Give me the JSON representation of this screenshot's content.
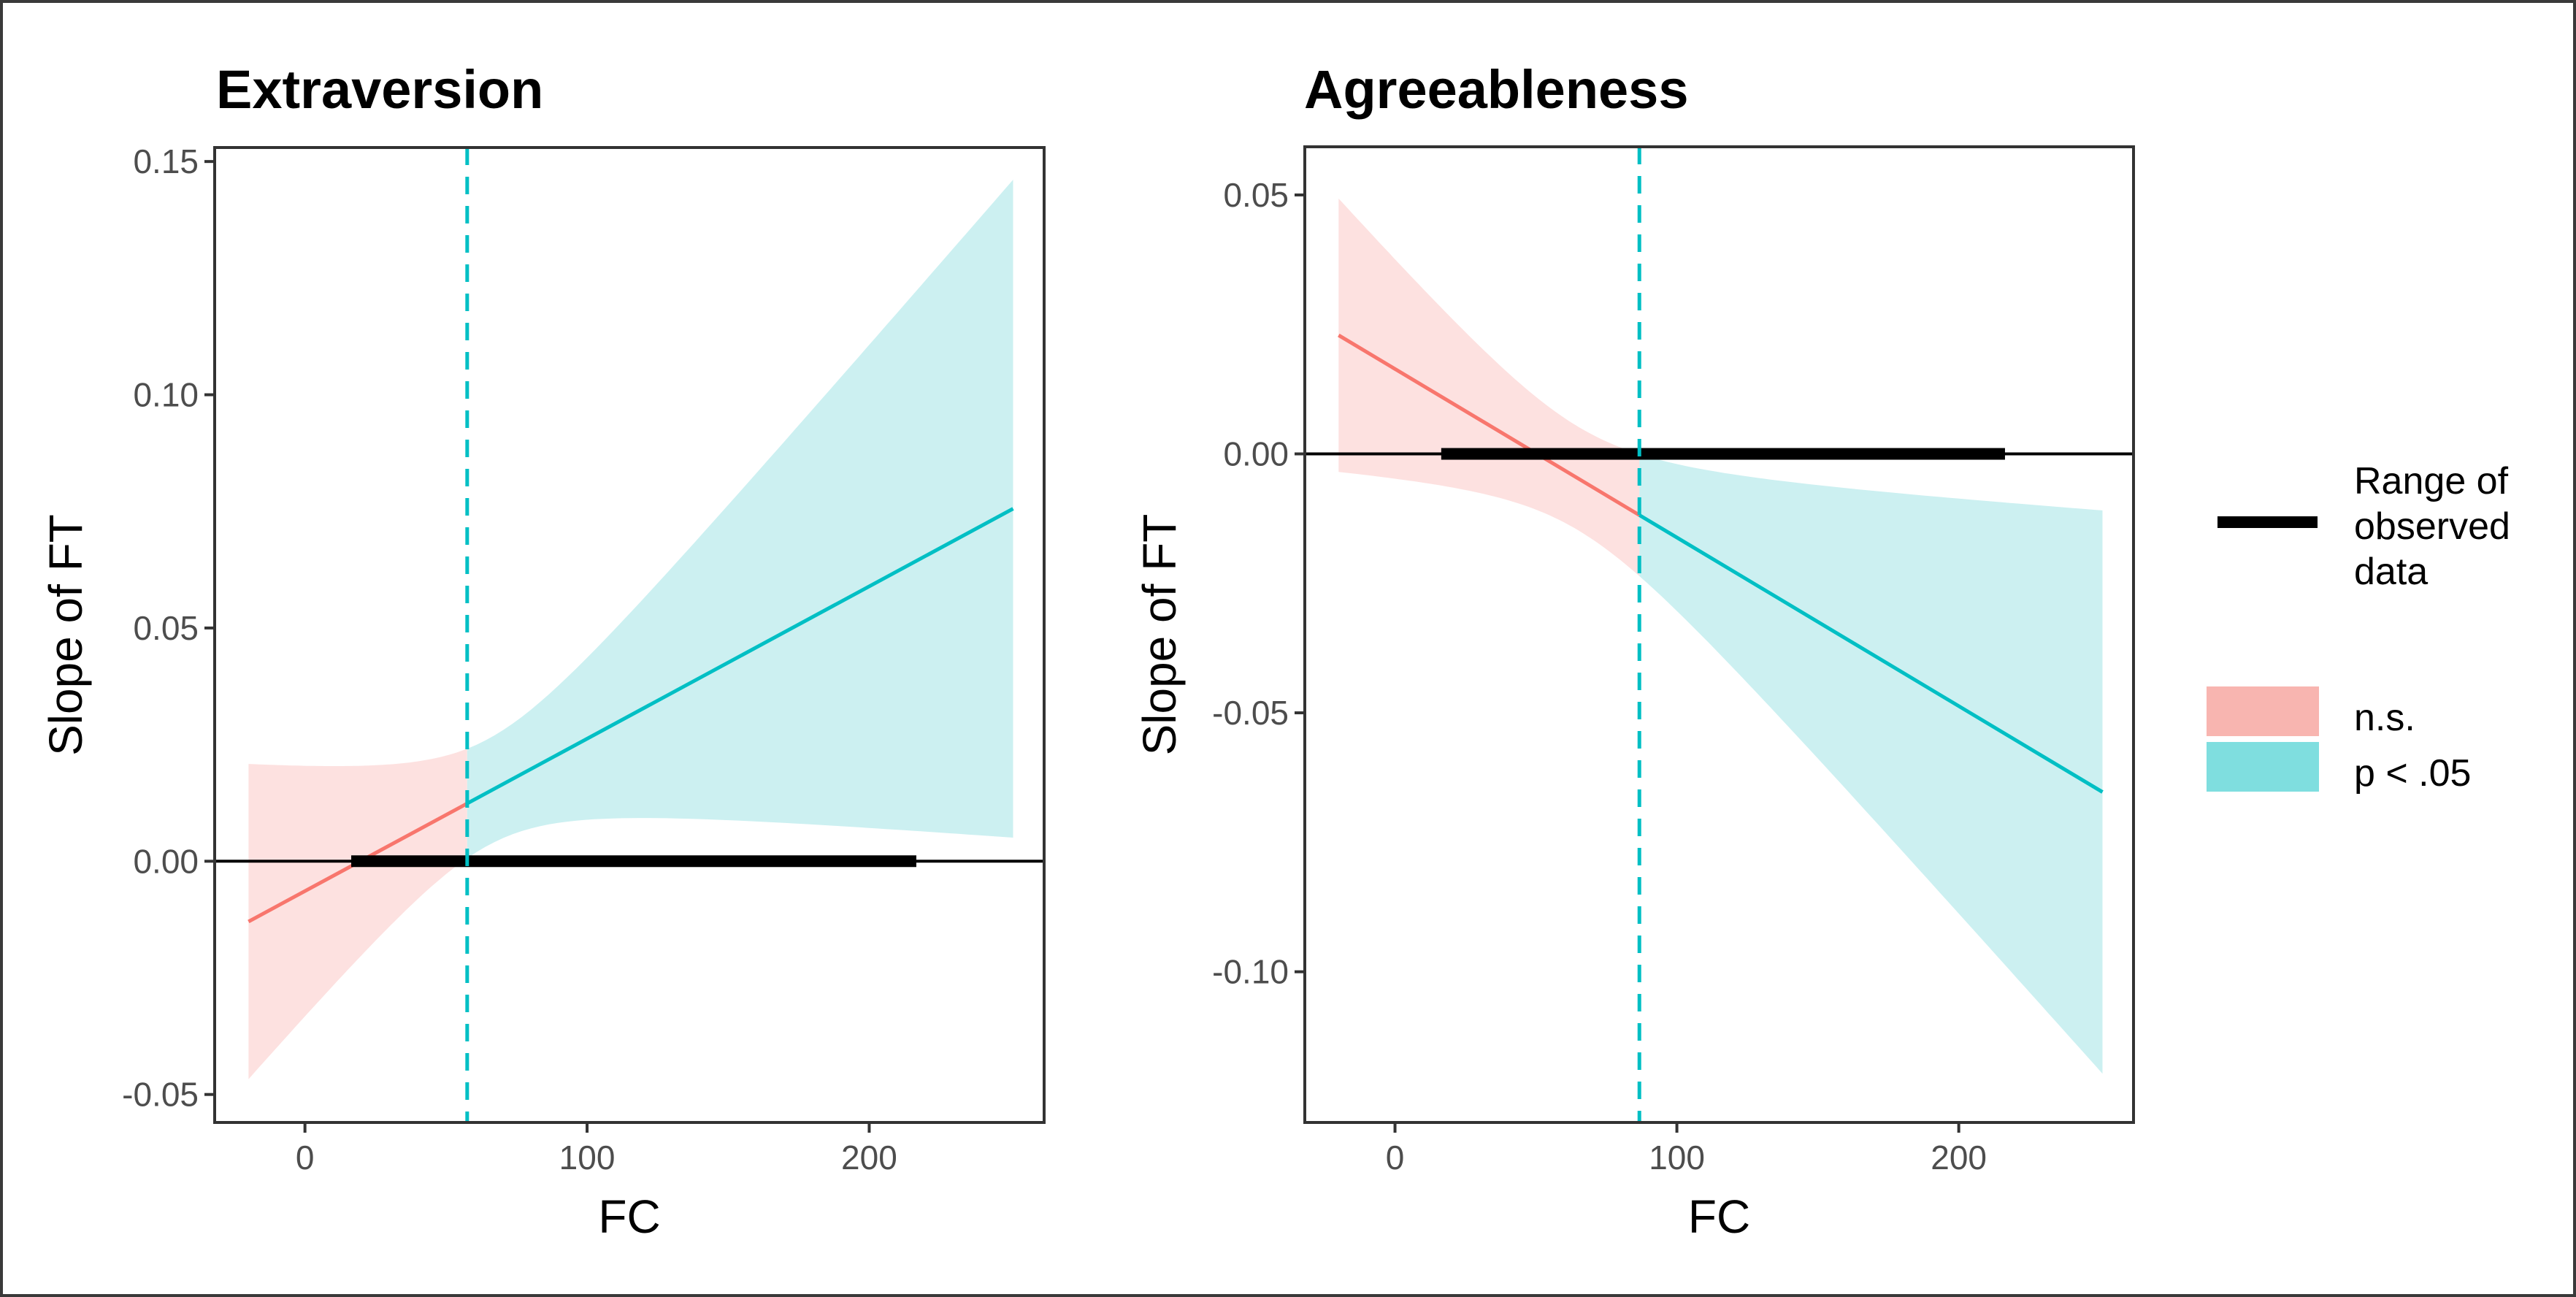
{
  "figure": {
    "legend": {
      "range_label_lines": [
        "Range of",
        "observed",
        "data"
      ],
      "fill_entries": [
        {
          "label": "n.s.",
          "color": "#F8B5B0"
        },
        {
          "label": "p < .05",
          "color": "#7FDEDF"
        }
      ]
    },
    "colors": {
      "ns_line": "#F8766D",
      "ns_band": "#FDE1E0",
      "sig_line": "#00BFC4",
      "sig_band": "#CCF0F1",
      "range_bar": "#000000",
      "axis": "#333333"
    }
  },
  "chart_data": [
    {
      "type": "area",
      "title": "Extraversion",
      "xlabel": "FC",
      "ylabel": "Slope of FT",
      "xlim": [
        -32,
        262
      ],
      "ylim": [
        -0.056,
        0.153
      ],
      "x_ticks": [
        0,
        100,
        200
      ],
      "x_tick_labels": [
        "0",
        "100",
        "200"
      ],
      "y_ticks": [
        -0.05,
        0.0,
        0.05,
        0.1,
        0.15
      ],
      "y_tick_labels": [
        "-0.05",
        "0.00",
        "0.05",
        "0.10",
        "0.15"
      ],
      "grid": false,
      "x_range_plotted": [
        -20,
        251
      ],
      "johnson_neyman_point": 57.5,
      "range_of_observed_data": [
        16.4,
        216.7
      ],
      "slope_line": {
        "intercept": -0.0064,
        "slope": 0.0003266
      },
      "ci_halfwidth_sq": {
        "A": 0.00013,
        "C": 1.4e-07,
        "center": 65
      },
      "key_points": [
        {
          "x": -20,
          "estimate": -0.0129,
          "lower": -0.046,
          "upper": 0.021
        },
        {
          "x": 57.5,
          "estimate": 0.0124,
          "lower": 0.0,
          "upper": 0.0245
        },
        {
          "x": 251,
          "estimate": 0.0756,
          "lower": 0.0071,
          "upper": 0.1447
        }
      ],
      "series": [
        {
          "name": "n.s.",
          "x_range": [
            -20,
            57.5
          ]
        },
        {
          "name": "p < .05",
          "x_range": [
            57.5,
            251
          ]
        }
      ]
    },
    {
      "type": "area",
      "title": "Agreeableness",
      "xlabel": "FC",
      "ylabel": "Slope of FT",
      "xlim": [
        -32,
        262
      ],
      "ylim": [
        -0.1291,
        0.0593
      ],
      "x_ticks": [
        0,
        100,
        200
      ],
      "x_tick_labels": [
        "0",
        "100",
        "200"
      ],
      "y_ticks": [
        -0.1,
        -0.05,
        0.0,
        0.05
      ],
      "y_tick_labels": [
        "-0.10",
        "-0.05",
        "0.00",
        "0.05"
      ],
      "grid": false,
      "x_range_plotted": [
        -20,
        251
      ],
      "johnson_neyman_point": 86.7,
      "range_of_observed_data": [
        16.4,
        216.4
      ],
      "slope_line": {
        "intercept": 0.0164,
        "slope": -0.0003255
      },
      "ci_halfwidth_sq": {
        "A": 0.0001,
        "C": 8.26e-08,
        "center": 65
      },
      "key_points": [
        {
          "x": -20,
          "estimate": 0.0229,
          "lower": -0.0035,
          "upper": 0.0493
        },
        {
          "x": 86.7,
          "estimate": -0.0112,
          "lower": -0.0225,
          "upper": 0.0
        },
        {
          "x": 251,
          "estimate": -0.0653,
          "lower": -0.1205,
          "upper": -0.0097
        }
      ],
      "series": [
        {
          "name": "n.s.",
          "x_range": [
            -20,
            86.7
          ]
        },
        {
          "name": "p < .05",
          "x_range": [
            86.7,
            251
          ]
        }
      ]
    }
  ]
}
